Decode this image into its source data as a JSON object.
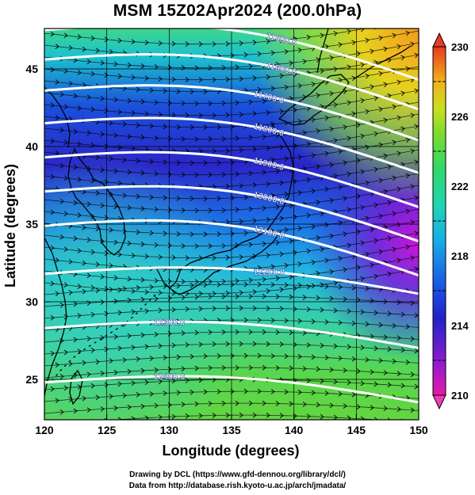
{
  "title": "MSM 15Z02Apr2024 (200.0hPa)",
  "credits": {
    "line1": "Drawing by DCL (https://www.gfd-dennou.org/library/dcl/)",
    "line2": "Data from http://database.rish.kyoto-u.ac.jp/arch/jmadata/"
  },
  "chart_data": {
    "type": "heatmap",
    "xlabel": "Longitude (degrees)",
    "ylabel": "Latitude  (degrees)",
    "xlim": [
      120,
      150
    ],
    "ylim": [
      22.4,
      47.6
    ],
    "x_ticks": [
      "120",
      "125",
      "130",
      "135",
      "140",
      "145",
      "150"
    ],
    "y_ticks": [
      "25",
      "30",
      "35",
      "40",
      "45"
    ],
    "grid": true,
    "colorbar": {
      "ticks": [
        "210",
        "214",
        "218",
        "222",
        "226",
        "230"
      ],
      "range": [
        210,
        230
      ]
    },
    "contours": [
      {
        "label": "11500.0",
        "lat": 47.5
      },
      {
        "label": "11600.0",
        "lat": 45.6
      },
      {
        "label": "11700.0",
        "lat": 43.6
      },
      {
        "label": "11800.0",
        "lat": 41.5
      },
      {
        "label": "11900.0",
        "lat": 39.3
      },
      {
        "label": "12000.0",
        "lat": 37.1
      },
      {
        "label": "12100.0",
        "lat": 34.9
      },
      {
        "label": "12200.0",
        "lat": 31.8
      },
      {
        "label": "12300.0",
        "lat": 28.3
      },
      {
        "label": "12400.0",
        "lat": 24.8
      }
    ]
  }
}
